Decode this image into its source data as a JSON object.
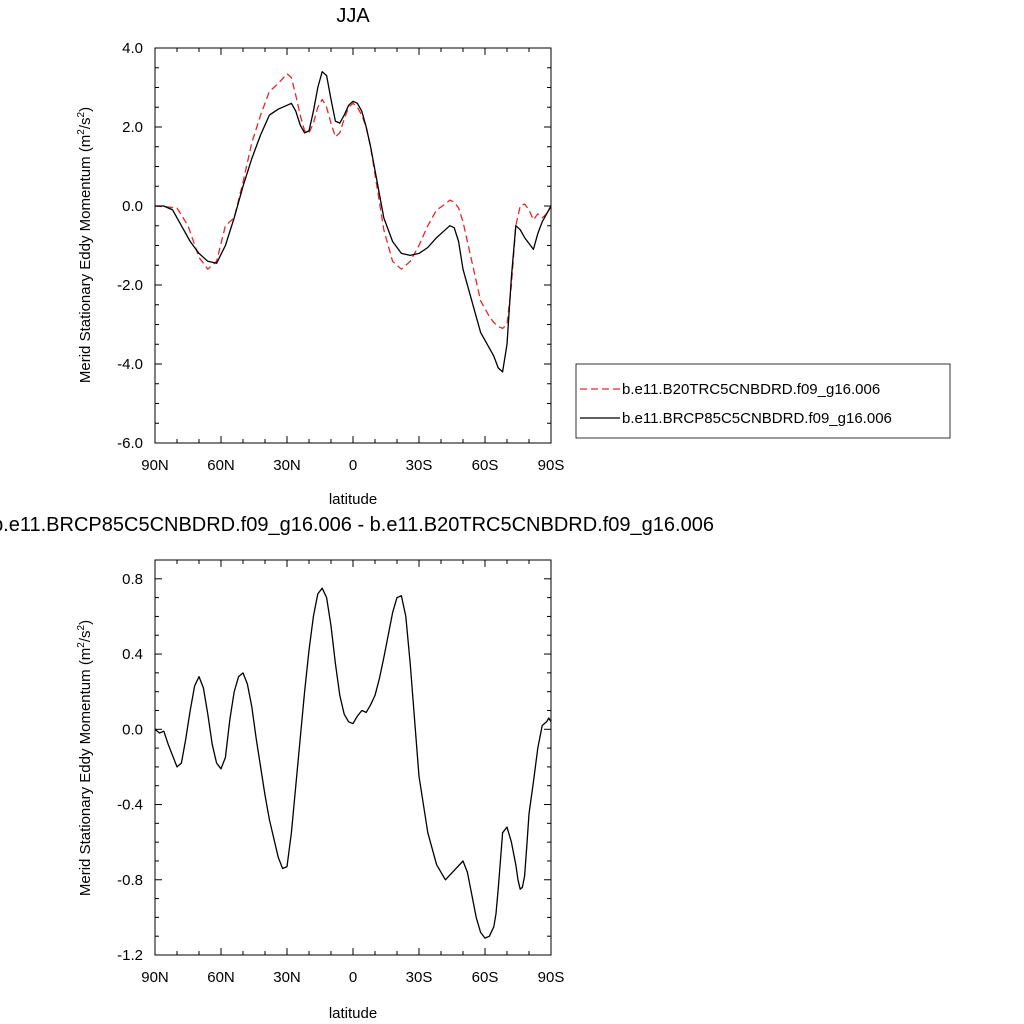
{
  "chart_data": [
    {
      "type": "line",
      "title": "JJA",
      "xlabel": "latitude",
      "ylabel": "Merid Stationary Eddy Momentum (m²/s²)",
      "ylim": [
        -6.0,
        4.0
      ],
      "xlim": [
        90,
        -90
      ],
      "xtick_values": [
        90,
        60,
        30,
        0,
        -30,
        -60,
        -90
      ],
      "xtick_labels": [
        "90N",
        "60N",
        "30N",
        "0",
        "30S",
        "60S",
        "90S"
      ],
      "ytick_values": [
        -6,
        -4,
        -2,
        0,
        2,
        4
      ],
      "ytick_labels": [
        "-6.0",
        "-4.0",
        "-2.0",
        "0.0",
        "2.0",
        "4.0"
      ],
      "grid": false,
      "legend_position": "right",
      "series": [
        {
          "name": "b.e11.B20TRC5CNBDRD.f09_g16.006",
          "color": "#e8262b",
          "dash": "dashed",
          "x": [
            90,
            85,
            80,
            75,
            70,
            66,
            62,
            58,
            54,
            50,
            46,
            42,
            38,
            34,
            30,
            28,
            26,
            24,
            22,
            20,
            18,
            16,
            14,
            12,
            10,
            8,
            6,
            4,
            2,
            0,
            -2,
            -4,
            -6,
            -8,
            -10,
            -14,
            -18,
            -22,
            -26,
            -30,
            -34,
            -38,
            -42,
            -44,
            -46,
            -48,
            -50,
            -54,
            -58,
            -62,
            -64,
            -66,
            -68,
            -70,
            -72,
            -74,
            -76,
            -78,
            -80,
            -82,
            -84,
            -86,
            -88,
            -90
          ],
          "y": [
            0.0,
            -0.02,
            -0.05,
            -0.5,
            -1.3,
            -1.6,
            -1.4,
            -0.5,
            -0.3,
            0.6,
            1.6,
            2.3,
            2.9,
            3.1,
            3.35,
            3.25,
            2.8,
            2.3,
            1.9,
            1.85,
            2.1,
            2.5,
            2.7,
            2.5,
            2.1,
            1.75,
            1.85,
            2.2,
            2.5,
            2.6,
            2.5,
            2.3,
            2.0,
            1.5,
            0.8,
            -0.6,
            -1.4,
            -1.6,
            -1.4,
            -1.0,
            -0.5,
            -0.1,
            0.05,
            0.15,
            0.1,
            -0.05,
            -0.4,
            -1.4,
            -2.4,
            -2.8,
            -2.95,
            -3.05,
            -3.1,
            -3.0,
            -2.0,
            -0.5,
            0.0,
            0.05,
            -0.1,
            -0.35,
            -0.2,
            -0.3,
            -0.2,
            0.0
          ]
        },
        {
          "name": "b.e11.BRCP85C5CNBDRD.f09_g16.006",
          "color": "#000000",
          "dash": "solid",
          "x": [
            90,
            86,
            82,
            78,
            74,
            70,
            66,
            62,
            58,
            54,
            50,
            46,
            42,
            38,
            34,
            30,
            28,
            26,
            24,
            22,
            20,
            18,
            16,
            14,
            12,
            10,
            8,
            6,
            4,
            2,
            0,
            -2,
            -4,
            -6,
            -8,
            -10,
            -14,
            -18,
            -22,
            -26,
            -30,
            -34,
            -38,
            -42,
            -44,
            -46,
            -48,
            -50,
            -54,
            -58,
            -62,
            -64,
            -66,
            -68,
            -70,
            -72,
            -74,
            -76,
            -78,
            -80,
            -82,
            -84,
            -86,
            -88,
            -90
          ],
          "y": [
            0.0,
            0.0,
            -0.1,
            -0.5,
            -0.9,
            -1.2,
            -1.4,
            -1.45,
            -1.0,
            -0.3,
            0.5,
            1.2,
            1.8,
            2.3,
            2.45,
            2.55,
            2.6,
            2.4,
            2.05,
            1.85,
            1.9,
            2.4,
            3.0,
            3.4,
            3.3,
            2.7,
            2.15,
            2.1,
            2.3,
            2.55,
            2.65,
            2.6,
            2.4,
            2.0,
            1.5,
            0.9,
            -0.3,
            -0.9,
            -1.2,
            -1.25,
            -1.2,
            -1.05,
            -0.8,
            -0.6,
            -0.5,
            -0.55,
            -0.9,
            -1.6,
            -2.4,
            -3.2,
            -3.6,
            -3.8,
            -4.1,
            -4.2,
            -3.5,
            -1.8,
            -0.5,
            -0.6,
            -0.8,
            -0.95,
            -1.1,
            -0.7,
            -0.4,
            -0.2,
            0.0
          ]
        }
      ]
    },
    {
      "type": "line",
      "title": "b.e11.BRCP85C5CNBDRD.f09_g16.006 - b.e11.B20TRC5CNBDRD.f09_g16.006",
      "xlabel": "latitude",
      "ylabel": "Merid Stationary Eddy Momentum (m²/s²)",
      "ylim": [
        -1.2,
        0.9
      ],
      "xlim": [
        90,
        -90
      ],
      "xtick_values": [
        90,
        60,
        30,
        0,
        -30,
        -60,
        -90
      ],
      "xtick_labels": [
        "90N",
        "60N",
        "30N",
        "0",
        "30S",
        "60S",
        "90S"
      ],
      "ytick_values": [
        -1.2,
        -0.8,
        -0.4,
        0.0,
        0.4,
        0.8
      ],
      "ytick_labels": [
        "-1.2",
        "-0.8",
        "-0.4",
        "0.0",
        "0.4",
        "0.8"
      ],
      "grid": false,
      "series": [
        {
          "color": "#000000",
          "dash": "solid",
          "x": [
            90,
            88,
            86,
            84,
            82,
            80,
            78,
            76,
            74,
            72,
            70,
            68,
            66,
            64,
            62,
            60,
            58,
            56,
            54,
            52,
            50,
            48,
            46,
            44,
            42,
            40,
            38,
            36,
            34,
            32,
            30,
            28,
            26,
            24,
            22,
            20,
            18,
            16,
            14,
            12,
            10,
            8,
            6,
            4,
            2,
            0,
            -2,
            -4,
            -6,
            -8,
            -10,
            -12,
            -14,
            -16,
            -18,
            -20,
            -22,
            -24,
            -26,
            -28,
            -30,
            -34,
            -38,
            -42,
            -46,
            -50,
            -52,
            -54,
            -56,
            -58,
            -60,
            -62,
            -64,
            -65,
            -66,
            -67,
            -68,
            -70,
            -72,
            -74,
            -75,
            -76,
            -77,
            -78,
            -79,
            -80,
            -82,
            -84,
            -86,
            -88,
            -89,
            -90
          ],
          "y": [
            0.0,
            -0.02,
            -0.01,
            -0.08,
            -0.14,
            -0.2,
            -0.18,
            -0.05,
            0.1,
            0.23,
            0.28,
            0.22,
            0.08,
            -0.08,
            -0.18,
            -0.21,
            -0.15,
            0.05,
            0.2,
            0.28,
            0.3,
            0.24,
            0.12,
            -0.05,
            -0.2,
            -0.35,
            -0.48,
            -0.58,
            -0.68,
            -0.74,
            -0.73,
            -0.55,
            -0.3,
            -0.05,
            0.2,
            0.42,
            0.6,
            0.72,
            0.75,
            0.7,
            0.55,
            0.35,
            0.18,
            0.08,
            0.04,
            0.03,
            0.07,
            0.1,
            0.09,
            0.13,
            0.18,
            0.27,
            0.38,
            0.5,
            0.62,
            0.7,
            0.71,
            0.6,
            0.35,
            0.05,
            -0.25,
            -0.55,
            -0.72,
            -0.8,
            -0.75,
            -0.7,
            -0.76,
            -0.88,
            -1.0,
            -1.08,
            -1.11,
            -1.1,
            -1.05,
            -0.98,
            -0.85,
            -0.7,
            -0.55,
            -0.52,
            -0.6,
            -0.72,
            -0.8,
            -0.85,
            -0.84,
            -0.78,
            -0.62,
            -0.45,
            -0.28,
            -0.1,
            0.02,
            0.04,
            0.06,
            0.04
          ]
        }
      ]
    }
  ]
}
